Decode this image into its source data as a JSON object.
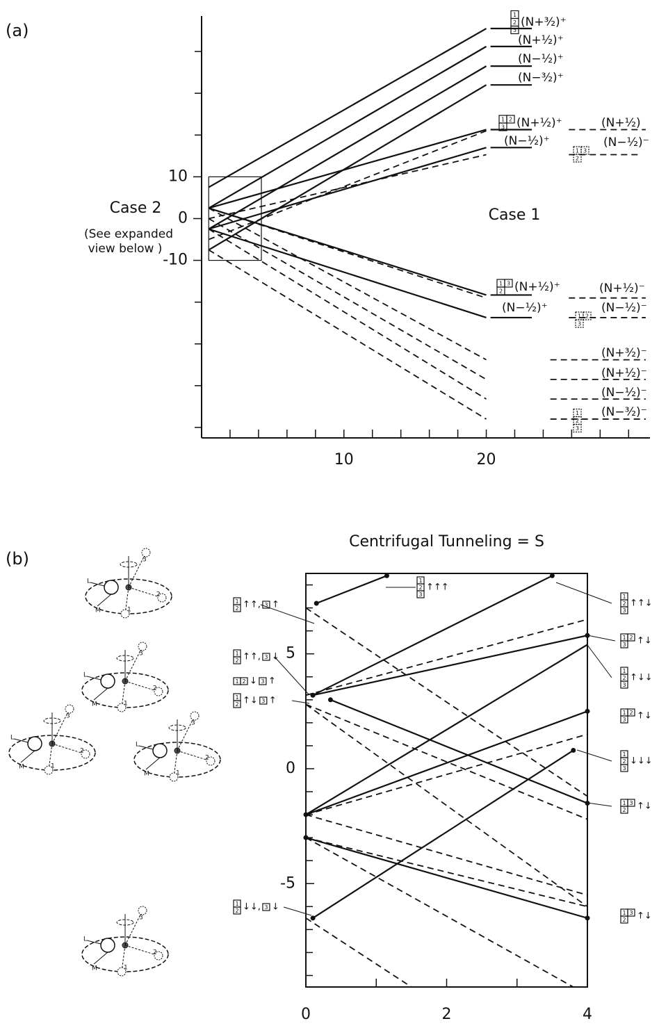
{
  "molecule_labels": [
    "L",
    "M",
    "1",
    "2",
    "3"
  ],
  "chart_data": [
    {
      "type": "line",
      "panel": "(a)",
      "texts": [
        "Case 2",
        "(See expanded",
        "view below )",
        "Case 1"
      ],
      "xlim": [
        0,
        31.5
      ],
      "ylim": [
        -52.5,
        48.5
      ],
      "xticks": [
        10,
        20
      ],
      "xminor": [
        2,
        4,
        6,
        8,
        12,
        14,
        16,
        18,
        22,
        24,
        26,
        28,
        30
      ],
      "yticks": [
        -10,
        0,
        10
      ],
      "yminor": [
        -50,
        -40,
        -30,
        -20,
        20,
        30,
        40
      ],
      "inset_box": {
        "xlim": [
          0.5,
          4.2
        ],
        "ylim": [
          -10,
          10
        ]
      },
      "color": "#111111",
      "series": [
        {
          "style": "solid",
          "x": [
            0.5,
            20
          ],
          "values": [
            7.5,
            45.5
          ]
        },
        {
          "style": "solid",
          "x": [
            0.5,
            20
          ],
          "values": [
            2.5,
            41.2
          ]
        },
        {
          "style": "solid",
          "x": [
            0.5,
            20
          ],
          "values": [
            -2.5,
            36.5
          ]
        },
        {
          "style": "solid",
          "x": [
            0.5,
            20
          ],
          "values": [
            -7.5,
            32
          ]
        },
        {
          "style": "solid",
          "x": [
            0.5,
            20
          ],
          "values": [
            2.5,
            21.3
          ]
        },
        {
          "style": "solid",
          "x": [
            0.5,
            20
          ],
          "values": [
            -2.5,
            17
          ]
        },
        {
          "style": "solid",
          "x": [
            0.5,
            20
          ],
          "values": [
            2.5,
            -18.3
          ]
        },
        {
          "style": "solid",
          "x": [
            0.5,
            20
          ],
          "values": [
            -2.5,
            -23.7
          ]
        },
        {
          "style": "dashed",
          "x": [
            0.5,
            20
          ],
          "values": [
            -5,
            21
          ]
        },
        {
          "style": "dashed",
          "x": [
            0.5,
            20
          ],
          "values": [
            0,
            15.3
          ]
        },
        {
          "style": "dashed",
          "x": [
            0.5,
            20
          ],
          "values": [
            2.5,
            -19
          ]
        },
        {
          "style": "dashed",
          "x": [
            0.5,
            20
          ],
          "values": [
            2.5,
            -33.8
          ]
        },
        {
          "style": "dashed",
          "x": [
            0.5,
            20
          ],
          "values": [
            0,
            -38.5
          ]
        },
        {
          "style": "dashed",
          "x": [
            0.5,
            20
          ],
          "values": [
            -2.5,
            -43.2
          ]
        },
        {
          "style": "dashed",
          "x": [
            0.5,
            20
          ],
          "values": [
            -7.5,
            -48
          ]
        },
        {
          "style": "solid",
          "x": [
            20.3,
            23.2
          ],
          "values": [
            45.5,
            45.5
          ]
        },
        {
          "style": "solid",
          "x": [
            20.3,
            23.2
          ],
          "values": [
            41.2,
            41.2
          ]
        },
        {
          "style": "solid",
          "x": [
            20.3,
            23.2
          ],
          "values": [
            36.5,
            36.5
          ]
        },
        {
          "style": "solid",
          "x": [
            20.3,
            23.2
          ],
          "values": [
            32,
            32
          ]
        },
        {
          "style": "solid",
          "x": [
            20.3,
            23.2
          ],
          "values": [
            21.3,
            21.3
          ]
        },
        {
          "style": "solid",
          "x": [
            20.3,
            23.2
          ],
          "values": [
            17,
            17
          ]
        },
        {
          "style": "solid",
          "x": [
            20.3,
            23.2
          ],
          "values": [
            -18.3,
            -18.3
          ]
        },
        {
          "style": "solid",
          "x": [
            20.3,
            23.2
          ],
          "values": [
            -23.7,
            -23.7
          ]
        },
        {
          "style": "dashed",
          "x": [
            25.8,
            31.2
          ],
          "values": [
            21.3,
            21.3
          ]
        },
        {
          "style": "dashed",
          "x": [
            25.8,
            30.8
          ],
          "values": [
            15.3,
            15.3
          ]
        },
        {
          "style": "dashed",
          "x": [
            25.8,
            31.2
          ],
          "values": [
            -19,
            -19
          ]
        },
        {
          "style": "dashed",
          "x": [
            25.8,
            31.2
          ],
          "values": [
            -23.7,
            -23.7
          ]
        },
        {
          "style": "dashed",
          "x": [
            24.5,
            31.2
          ],
          "values": [
            -33.8,
            -33.8
          ]
        },
        {
          "style": "dashed",
          "x": [
            24.5,
            31.2
          ],
          "values": [
            -38.5,
            -38.5
          ]
        },
        {
          "style": "dashed",
          "x": [
            24.5,
            31.2
          ],
          "values": [
            -43.2,
            -43.2
          ]
        },
        {
          "style": "dashed",
          "x": [
            24.5,
            31.2
          ],
          "values": [
            -48,
            -48
          ]
        }
      ],
      "annotations": [
        {
          "parts": [
            {
              "rows": [
                [
                  "1"
                ],
                [
                  "2"
                ],
                [
                  "3"
                ]
              ]
            },
            "(N+³⁄₂)⁺"
          ]
        },
        {
          "parts": [
            "(N+¹⁄₂)⁺"
          ]
        },
        {
          "parts": [
            "(N−¹⁄₂)⁺"
          ]
        },
        {
          "parts": [
            "(N−³⁄₂)⁺"
          ]
        },
        {
          "parts": [
            {
              "rows": [
                [
                  "1",
                  "2"
                ],
                [
                  "3"
                ]
              ]
            },
            "(N+¹⁄₂)⁺"
          ]
        },
        {
          "parts": [
            "(N+¹⁄₂)"
          ]
        },
        {
          "parts": [
            "(N−¹⁄₂)⁺"
          ]
        },
        {
          "parts": [
            {
              "rows": [
                [
                  "1",
                  "3"
                ],
                [
                  "2"
                ]
              ],
              "dashed": true
            }
          ]
        },
        {
          "parts": [
            "(N−¹⁄₂)⁻"
          ]
        },
        {
          "parts": [
            {
              "rows": [
                [
                  "1",
                  "3"
                ],
                [
                  "2"
                ]
              ]
            },
            "(N+¹⁄₂)⁺"
          ]
        },
        {
          "parts": [
            "(N+¹⁄₂)⁻"
          ]
        },
        {
          "parts": [
            "(N−¹⁄₂)⁺"
          ]
        },
        {
          "parts": [
            {
              "rows": [
                [
                  "1",
                  "2"
                ],
                [
                  "3"
                ]
              ],
              "dashed": true
            }
          ]
        },
        {
          "parts": [
            "(N−¹⁄₂)⁻"
          ]
        },
        {
          "parts": [
            "(N+³⁄₂)⁻"
          ]
        },
        {
          "parts": [
            "(N+¹⁄₂)⁻"
          ]
        },
        {
          "parts": [
            "(N−¹⁄₂)⁻"
          ]
        },
        {
          "parts": [
            {
              "rows": [
                [
                  "1"
                ],
                [
                  "2"
                ],
                [
                  "3"
                ]
              ],
              "dashed": true
            }
          ]
        },
        {
          "parts": [
            "(N−³⁄₂)⁻"
          ]
        }
      ]
    },
    {
      "type": "line",
      "panel": "(b)",
      "title": "Centrifugal Tunneling = S",
      "xlim": [
        0,
        4
      ],
      "ylim": [
        -9.5,
        8.5
      ],
      "xticks": [
        0,
        2,
        4
      ],
      "xminor": [
        1,
        3
      ],
      "yticks": [
        -5,
        0,
        5
      ],
      "yminor": [
        -9,
        -8,
        -7,
        -6,
        -4,
        -3,
        -2,
        -1,
        1,
        2,
        3,
        4,
        6,
        7,
        8
      ],
      "color": "#111111",
      "series": [
        {
          "style": "solid",
          "dots": true,
          "x": [
            0.15,
            1.15
          ],
          "values": [
            7.2,
            8.4
          ]
        },
        {
          "style": "solid",
          "dots": true,
          "x": [
            0.1,
            3.5
          ],
          "values": [
            3.2,
            8.4
          ]
        },
        {
          "style": "solid",
          "dots": true,
          "x": [
            0.1,
            4
          ],
          "values": [
            3.2,
            5.8
          ]
        },
        {
          "style": "solid",
          "dots": true,
          "x": [
            0.35,
            4
          ],
          "values": [
            3.0,
            -1.5
          ]
        },
        {
          "style": "solid",
          "x": [
            0,
            4
          ],
          "values": [
            -2,
            5.4
          ]
        },
        {
          "style": "solid",
          "dots": true,
          "x": [
            0,
            4
          ],
          "values": [
            -2,
            2.5
          ]
        },
        {
          "style": "solid",
          "dots": true,
          "x": [
            0,
            4
          ],
          "values": [
            -3,
            -6.5
          ]
        },
        {
          "style": "solid",
          "dots": true,
          "x": [
            0.1,
            3.8
          ],
          "values": [
            -6.5,
            0.8
          ]
        },
        {
          "style": "dashed",
          "x": [
            0,
            4
          ],
          "values": [
            7.0,
            -1.2
          ]
        },
        {
          "style": "dashed",
          "x": [
            0,
            4
          ],
          "values": [
            3.2,
            6.5
          ]
        },
        {
          "style": "dashed",
          "x": [
            0,
            4
          ],
          "values": [
            2.8,
            -2.2
          ]
        },
        {
          "style": "dashed",
          "x": [
            0,
            4
          ],
          "values": [
            2.8,
            -6
          ]
        },
        {
          "style": "dashed",
          "x": [
            0,
            4
          ],
          "values": [
            -2,
            1.5
          ]
        },
        {
          "style": "dashed",
          "x": [
            0,
            4
          ],
          "values": [
            -3,
            -6
          ]
        },
        {
          "style": "dashed",
          "x": [
            0,
            1.5
          ],
          "values": [
            -6.5,
            -9.5
          ]
        },
        {
          "style": "dashed",
          "x": [
            0,
            3.8
          ],
          "values": [
            -3,
            -9.5
          ]
        },
        {
          "style": "dashed",
          "x": [
            0,
            4
          ],
          "values": [
            -2,
            -5.5
          ]
        }
      ],
      "annotations": [
        {
          "parts": [
            {
              "rows": [
                [
                  "1"
                ],
                [
                  "2"
                ]
              ]
            },
            "↑↑,",
            {
              "rows": [
                [
                  "3"
                ]
              ]
            },
            "↑"
          ]
        },
        {
          "parts": [
            {
              "rows": [
                [
                  "1"
                ],
                [
                  "2"
                ]
              ]
            },
            "↑↑,",
            {
              "rows": [
                [
                  "3"
                ]
              ]
            },
            "↓"
          ]
        },
        {
          "parts": [
            {
              "rows": [
                [
                  "1",
                  "2"
                ]
              ]
            },
            "↓",
            {
              "rows": [
                [
                  "3"
                ]
              ]
            },
            "↑"
          ]
        },
        {
          "parts": [
            {
              "rows": [
                [
                  "1"
                ],
                [
                  "2"
                ]
              ]
            },
            "↑↓",
            {
              "rows": [
                [
                  "3"
                ]
              ]
            },
            "↑"
          ]
        },
        {
          "parts": [
            {
              "rows": [
                [
                  "1"
                ],
                [
                  "2"
                ]
              ]
            },
            "↓↓,",
            {
              "rows": [
                [
                  "3"
                ]
              ]
            },
            "↓"
          ]
        },
        {
          "parts": [
            {
              "rows": [
                [
                  "1"
                ],
                [
                  "2"
                ],
                [
                  "3"
                ]
              ]
            },
            "↑↑↑"
          ]
        },
        {
          "parts": [
            {
              "rows": [
                [
                  "1"
                ],
                [
                  "2"
                ],
                [
                  "3"
                ]
              ]
            },
            "↑↑↓"
          ]
        },
        {
          "parts": [
            {
              "rows": [
                [
                  "1",
                  "2"
                ],
                [
                  "3"
                ]
              ]
            },
            "↑↓"
          ]
        },
        {
          "parts": [
            {
              "rows": [
                [
                  "1"
                ],
                [
                  "2"
                ],
                [
                  "3"
                ]
              ]
            },
            "↑↓↓"
          ]
        },
        {
          "parts": [
            {
              "rows": [
                [
                  "1",
                  "2"
                ],
                [
                  "3"
                ]
              ]
            },
            "↑↓"
          ]
        },
        {
          "parts": [
            {
              "rows": [
                [
                  "1"
                ],
                [
                  "2"
                ],
                [
                  "3"
                ]
              ]
            },
            "↓↓↓"
          ]
        },
        {
          "parts": [
            {
              "rows": [
                [
                  "1",
                  "3"
                ],
                [
                  "2"
                ]
              ]
            },
            "↑↓"
          ]
        },
        {
          "parts": [
            {
              "rows": [
                [
                  "1",
                  "3"
                ],
                [
                  "2"
                ]
              ]
            },
            "↑↓"
          ]
        }
      ]
    }
  ]
}
